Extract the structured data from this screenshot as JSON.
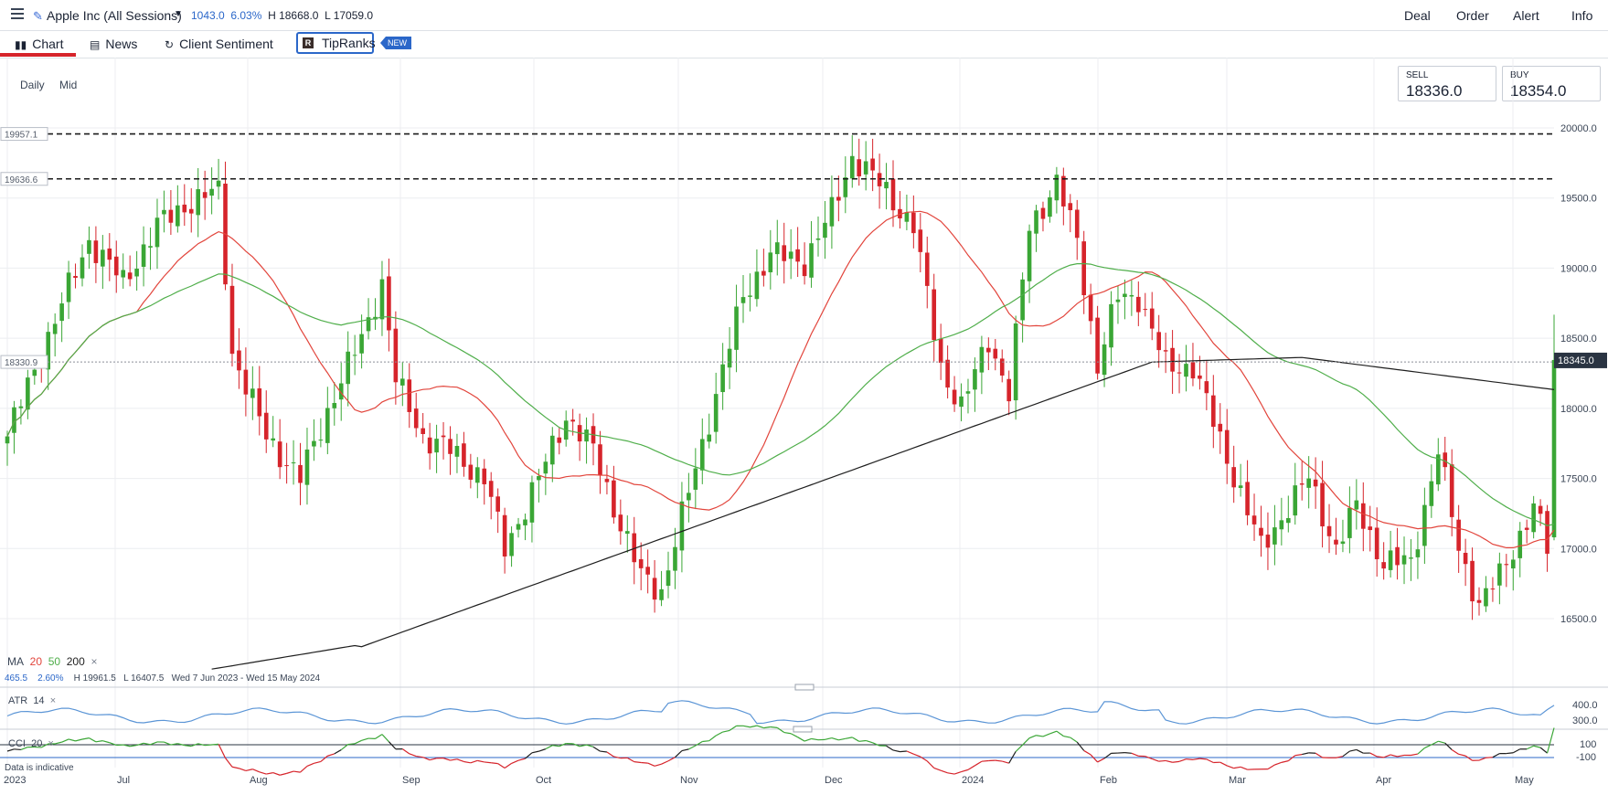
{
  "header": {
    "instrument": "Apple Inc (All Sessions)",
    "change_pts": "1043.0",
    "change_pct": "6.03%",
    "high": "H 18668.0",
    "low": "L 17059.0",
    "nav": [
      "Deal",
      "Order",
      "Alert",
      "Info"
    ]
  },
  "tabs": [
    {
      "label": "Chart",
      "icon": "candlestick-icon"
    },
    {
      "label": "News",
      "icon": "news-icon"
    },
    {
      "label": "Client Sentiment",
      "icon": "sentiment-icon"
    },
    {
      "label": "TipRanks",
      "icon": "tipranks-logo"
    }
  ],
  "new_badge": "NEW",
  "controls": {
    "interval": "Daily",
    "price_type": "Mid"
  },
  "sell": {
    "label": "SELL",
    "value": "18336.0"
  },
  "buy": {
    "label": "BUY",
    "value": "18354.0"
  },
  "ma_legend": {
    "label": "MA",
    "periods": [
      "20",
      "50",
      "200"
    ],
    "close": "×"
  },
  "stats_line": {
    "change": "465.5",
    "pct": "2.60%",
    "high": "H 19961.5",
    "low": "L 16407.5",
    "range": "Wed 7 Jun 2023 - Wed 15 May 2024"
  },
  "atr": {
    "label": "ATR",
    "period": "14",
    "close": "×",
    "ticks": [
      "400.0",
      "300.0"
    ]
  },
  "cci": {
    "label": "CCI",
    "period": "20",
    "close": "×",
    "ticks": [
      "100",
      "-100"
    ]
  },
  "footnote": "Data is indicative",
  "colors": {
    "up": "#3aa635",
    "down": "#d6242b",
    "ma20": "#e2453c",
    "ma50": "#4fae4a",
    "ma200": "#1f1f1f",
    "accent": "#2b67c9"
  },
  "chart_data": {
    "type": "candlestick",
    "y_ticks": [
      "20000.0",
      "19500.0",
      "19000.0",
      "18500.0",
      "18000.0",
      "17500.0",
      "17000.0",
      "16500.0"
    ],
    "ylim": [
      16150,
      20270
    ],
    "x_labels": [
      "2023",
      "Jul",
      "Aug",
      "Sep",
      "Oct",
      "Nov",
      "Dec",
      "2024",
      "Feb",
      "Mar",
      "Apr",
      "May"
    ],
    "horizontal_lines": [
      {
        "value": 19957.1,
        "label": "19957.1",
        "style": "dashed"
      },
      {
        "value": 19636.6,
        "label": "19636.6",
        "style": "dashed"
      },
      {
        "value": 18330.9,
        "label": "18330.9",
        "style": "dotted"
      }
    ],
    "last_price": {
      "value": 18345.0,
      "label": "18345.0"
    },
    "anchors": [
      [
        0,
        17800
      ],
      [
        5,
        18400
      ],
      [
        12,
        19200
      ],
      [
        17,
        18900
      ],
      [
        22,
        19300
      ],
      [
        26,
        19450
      ],
      [
        31,
        19550
      ],
      [
        33,
        18400
      ],
      [
        38,
        17800
      ],
      [
        43,
        17500
      ],
      [
        48,
        18100
      ],
      [
        52,
        18500
      ],
      [
        55,
        18900
      ],
      [
        57,
        18200
      ],
      [
        61,
        17800
      ],
      [
        65,
        17700
      ],
      [
        70,
        17500
      ],
      [
        73,
        17000
      ],
      [
        78,
        17500
      ],
      [
        82,
        17950
      ],
      [
        86,
        17700
      ],
      [
        89,
        17300
      ],
      [
        93,
        16800
      ],
      [
        96,
        16700
      ],
      [
        100,
        17400
      ],
      [
        104,
        18100
      ],
      [
        108,
        18800
      ],
      [
        112,
        19100
      ],
      [
        117,
        19050
      ],
      [
        121,
        19400
      ],
      [
        124,
        19800
      ],
      [
        128,
        19600
      ],
      [
        133,
        19300
      ],
      [
        137,
        18300
      ],
      [
        140,
        18000
      ],
      [
        144,
        18500
      ],
      [
        147,
        18100
      ],
      [
        150,
        19300
      ],
      [
        154,
        19600
      ],
      [
        157,
        19200
      ],
      [
        160,
        18300
      ],
      [
        163,
        18800
      ],
      [
        166,
        18800
      ],
      [
        170,
        18300
      ],
      [
        174,
        18300
      ],
      [
        177,
        17900
      ],
      [
        181,
        17400
      ],
      [
        184,
        17000
      ],
      [
        188,
        17300
      ],
      [
        191,
        17500
      ],
      [
        195,
        17000
      ],
      [
        198,
        17300
      ],
      [
        202,
        16900
      ],
      [
        206,
        16900
      ],
      [
        210,
        17700
      ],
      [
        213,
        17000
      ],
      [
        216,
        16600
      ],
      [
        219,
        16800
      ],
      [
        222,
        17100
      ],
      [
        224,
        17300
      ],
      [
        226,
        17000
      ],
      [
        227,
        18345
      ]
    ]
  }
}
